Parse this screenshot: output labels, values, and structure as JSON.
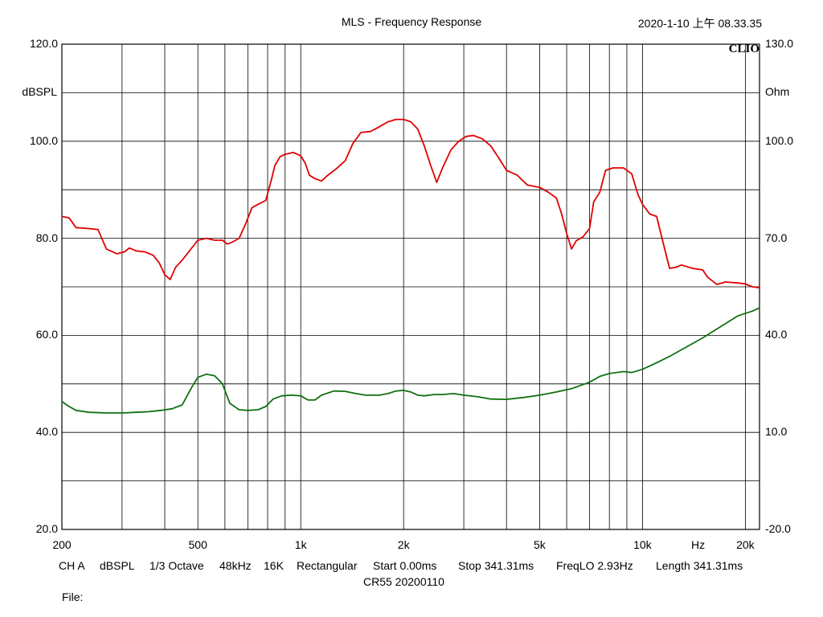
{
  "header": {
    "title": "MLS - Frequency Response",
    "timestamp": "2020-1-10 上午 08.33.35",
    "logo": "CLIO"
  },
  "chart_data": {
    "type": "line",
    "title": "MLS - Frequency Response",
    "x_scale": "log",
    "xlim": [
      200,
      22000
    ],
    "x_tick_labels": [
      {
        "value": 200,
        "label": "200"
      },
      {
        "value": 500,
        "label": "500"
      },
      {
        "value": 1000,
        "label": "1k"
      },
      {
        "value": 2000,
        "label": "2k"
      },
      {
        "value": 5000,
        "label": "5k"
      },
      {
        "value": 10000,
        "label": "10k"
      },
      {
        "value": 20000,
        "label": "20k"
      }
    ],
    "x_unit_label": "Hz",
    "x_gridlines": [
      300,
      400,
      500,
      600,
      700,
      800,
      900,
      1000,
      2000,
      3000,
      4000,
      5000,
      6000,
      7000,
      8000,
      9000,
      10000,
      20000
    ],
    "left_axis": {
      "label": "dBSPL",
      "ylim": [
        20,
        120
      ],
      "ticks": [
        {
          "value": 120,
          "label": "120.0"
        },
        {
          "value": 100,
          "label": "100.0"
        },
        {
          "value": 80,
          "label": "80.0"
        },
        {
          "value": 60,
          "label": "60.0"
        },
        {
          "value": 40,
          "label": "40.0"
        },
        {
          "value": 20,
          "label": "20.0"
        }
      ]
    },
    "right_axis": {
      "label": "Ohm",
      "ylim": [
        -20,
        130
      ],
      "ticks": [
        {
          "value": 130,
          "label": "130.0"
        },
        {
          "value": 100,
          "label": "100.0"
        },
        {
          "value": 70,
          "label": "70.0"
        },
        {
          "value": 40,
          "label": "40.0"
        },
        {
          "value": 10,
          "label": "10.0"
        },
        {
          "value": -20,
          "label": "-20.0"
        }
      ]
    },
    "grid": true,
    "h_gridlines": [
      30,
      40,
      50,
      60,
      70,
      80,
      90,
      100,
      110
    ],
    "series": [
      {
        "axis": "left",
        "color": "#e00000",
        "points": [
          [
            200,
            84.5
          ],
          [
            210,
            84.2
          ],
          [
            220,
            82.2
          ],
          [
            240,
            82.0
          ],
          [
            255,
            81.8
          ],
          [
            270,
            77.8
          ],
          [
            290,
            76.8
          ],
          [
            305,
            77.2
          ],
          [
            315,
            78.0
          ],
          [
            330,
            77.4
          ],
          [
            350,
            77.2
          ],
          [
            370,
            76.5
          ],
          [
            385,
            75.0
          ],
          [
            400,
            72.5
          ],
          [
            415,
            71.5
          ],
          [
            430,
            74.0
          ],
          [
            450,
            75.5
          ],
          [
            470,
            77.2
          ],
          [
            500,
            79.6
          ],
          [
            530,
            80.0
          ],
          [
            560,
            79.6
          ],
          [
            590,
            79.6
          ],
          [
            610,
            78.8
          ],
          [
            630,
            79.2
          ],
          [
            660,
            80.0
          ],
          [
            690,
            83.0
          ],
          [
            720,
            86.3
          ],
          [
            750,
            87.0
          ],
          [
            790,
            87.8
          ],
          [
            820,
            92.0
          ],
          [
            840,
            95.0
          ],
          [
            870,
            96.8
          ],
          [
            900,
            97.3
          ],
          [
            950,
            97.7
          ],
          [
            1000,
            97.0
          ],
          [
            1030,
            95.5
          ],
          [
            1060,
            93.0
          ],
          [
            1100,
            92.3
          ],
          [
            1150,
            91.8
          ],
          [
            1200,
            93.0
          ],
          [
            1270,
            94.3
          ],
          [
            1350,
            96.0
          ],
          [
            1420,
            99.5
          ],
          [
            1500,
            101.8
          ],
          [
            1600,
            102.0
          ],
          [
            1700,
            103.0
          ],
          [
            1800,
            104.0
          ],
          [
            1900,
            104.5
          ],
          [
            2000,
            104.5
          ],
          [
            2100,
            104.0
          ],
          [
            2200,
            102.5
          ],
          [
            2300,
            99.0
          ],
          [
            2400,
            95.0
          ],
          [
            2500,
            91.5
          ],
          [
            2600,
            94.5
          ],
          [
            2750,
            98.2
          ],
          [
            2900,
            100.0
          ],
          [
            3050,
            101.0
          ],
          [
            3200,
            101.2
          ],
          [
            3400,
            100.5
          ],
          [
            3600,
            99.0
          ],
          [
            3800,
            96.5
          ],
          [
            4000,
            94.0
          ],
          [
            4300,
            93.0
          ],
          [
            4600,
            91.0
          ],
          [
            5000,
            90.5
          ],
          [
            5300,
            89.5
          ],
          [
            5600,
            88.3
          ],
          [
            5800,
            85.0
          ],
          [
            6000,
            81.0
          ],
          [
            6200,
            77.8
          ],
          [
            6400,
            79.5
          ],
          [
            6700,
            80.3
          ],
          [
            7000,
            82.0
          ],
          [
            7200,
            87.5
          ],
          [
            7500,
            89.5
          ],
          [
            7800,
            94.0
          ],
          [
            8200,
            94.5
          ],
          [
            8800,
            94.5
          ],
          [
            9300,
            93.3
          ],
          [
            9700,
            89.0
          ],
          [
            10000,
            87.0
          ],
          [
            10500,
            85.0
          ],
          [
            11000,
            84.5
          ],
          [
            11500,
            79.0
          ],
          [
            12000,
            73.8
          ],
          [
            12500,
            74.0
          ],
          [
            13000,
            74.5
          ],
          [
            14000,
            73.8
          ],
          [
            15000,
            73.5
          ],
          [
            15500,
            72.0
          ],
          [
            16500,
            70.5
          ],
          [
            17500,
            71.0
          ],
          [
            19000,
            70.8
          ],
          [
            20000,
            70.6
          ],
          [
            21000,
            70.0
          ],
          [
            22000,
            69.8
          ]
        ]
      },
      {
        "axis": "right",
        "color": "#107010",
        "points": [
          [
            200,
            19.5
          ],
          [
            210,
            18.0
          ],
          [
            220,
            16.8
          ],
          [
            240,
            16.2
          ],
          [
            270,
            16.0
          ],
          [
            300,
            16.0
          ],
          [
            330,
            16.2
          ],
          [
            360,
            16.4
          ],
          [
            390,
            16.8
          ],
          [
            420,
            17.3
          ],
          [
            450,
            18.5
          ],
          [
            480,
            24.0
          ],
          [
            500,
            27.0
          ],
          [
            530,
            28.0
          ],
          [
            560,
            27.5
          ],
          [
            590,
            25.0
          ],
          [
            620,
            19.0
          ],
          [
            660,
            17.0
          ],
          [
            700,
            16.8
          ],
          [
            750,
            17.0
          ],
          [
            790,
            18.0
          ],
          [
            830,
            20.3
          ],
          [
            880,
            21.3
          ],
          [
            940,
            21.5
          ],
          [
            1000,
            21.3
          ],
          [
            1050,
            20.0
          ],
          [
            1100,
            20.0
          ],
          [
            1150,
            21.5
          ],
          [
            1250,
            22.8
          ],
          [
            1350,
            22.7
          ],
          [
            1450,
            22.0
          ],
          [
            1550,
            21.5
          ],
          [
            1700,
            21.5
          ],
          [
            1800,
            22.0
          ],
          [
            1900,
            22.8
          ],
          [
            2000,
            23.0
          ],
          [
            2100,
            22.5
          ],
          [
            2200,
            21.5
          ],
          [
            2300,
            21.3
          ],
          [
            2450,
            21.7
          ],
          [
            2600,
            21.7
          ],
          [
            2800,
            22.0
          ],
          [
            3000,
            21.5
          ],
          [
            3300,
            21.0
          ],
          [
            3600,
            20.3
          ],
          [
            4000,
            20.2
          ],
          [
            4500,
            20.8
          ],
          [
            5000,
            21.5
          ],
          [
            5600,
            22.5
          ],
          [
            6200,
            23.5
          ],
          [
            7000,
            25.5
          ],
          [
            7500,
            27.3
          ],
          [
            8000,
            28.2
          ],
          [
            8800,
            28.8
          ],
          [
            9300,
            28.5
          ],
          [
            10000,
            29.5
          ],
          [
            11000,
            31.5
          ],
          [
            12000,
            33.5
          ],
          [
            13500,
            36.5
          ],
          [
            15000,
            39.2
          ],
          [
            17000,
            42.8
          ],
          [
            19000,
            46.0
          ],
          [
            21000,
            47.5
          ],
          [
            22000,
            48.5
          ]
        ]
      }
    ]
  },
  "footer": {
    "line1": [
      "CH A",
      "dBSPL",
      "1/3 Octave",
      "48kHz",
      "16K",
      "Rectangular",
      "Start 0.00ms",
      "Stop 341.31ms",
      "FreqLO 2.93Hz",
      "Length 341.31ms"
    ],
    "line2": "CR55  20200110",
    "file_label": "File:"
  }
}
